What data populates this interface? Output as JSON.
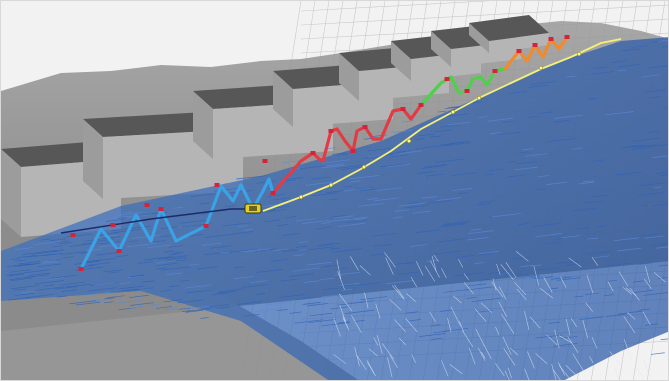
{
  "colors": {
    "background": "#f2f2f2",
    "grid": "#c9c9c9",
    "terrain": "#8a8a8a",
    "terrain_dark": "#5f5f5f",
    "block_top": "#575757",
    "block_front": "#b5b5b5",
    "point_cloud": "#2f63b5",
    "path_segments": [
      "#39a3e6",
      "#e23b44",
      "#4fcf4a",
      "#f28a2a"
    ],
    "waypoint": "#d4243a",
    "trajectory": "#f3f07a",
    "link_line": "#1b2a6b",
    "vehicle": "#e3d11e"
  }
}
